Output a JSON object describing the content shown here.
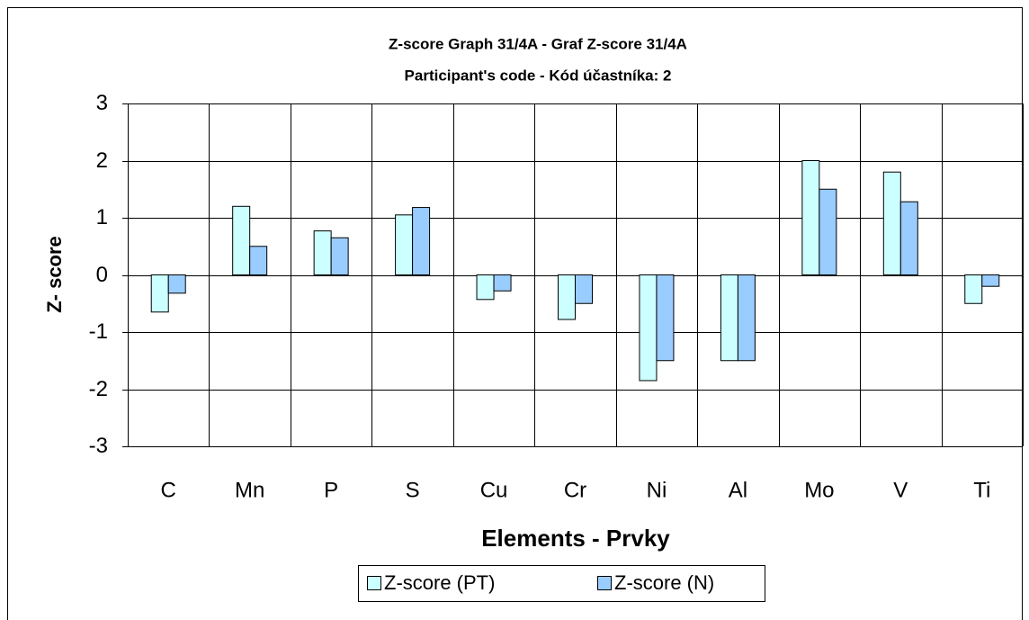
{
  "chart_data": {
    "type": "bar",
    "title": "Z-score Graph 31/4A - Graf Z-score 31/4A",
    "subtitle": "Participant's code - Kód účastníka:  2",
    "x_label": "Elements - Prvky",
    "y_label": "Z- score",
    "categories": [
      "C",
      "Mn",
      "P",
      "S",
      "Cu",
      "Cr",
      "Ni",
      "Al",
      "Mo",
      "V",
      "Ti"
    ],
    "series": [
      {
        "name": "Z-score (PT)",
        "color": "#ccffff",
        "values": [
          -0.65,
          1.2,
          0.77,
          1.05,
          -0.43,
          -0.78,
          -1.85,
          -1.5,
          2.0,
          1.8,
          -0.5
        ]
      },
      {
        "name": "Z-score (N)",
        "color": "#99ccff",
        "values": [
          -0.32,
          0.5,
          0.65,
          1.18,
          -0.28,
          -0.5,
          -1.5,
          -1.5,
          1.5,
          1.28,
          -0.2
        ]
      }
    ],
    "ylim": [
      -3,
      3
    ],
    "yticks": [
      -3,
      -2,
      -1,
      0,
      1,
      2,
      3
    ],
    "grid": true,
    "legend": "bottom"
  }
}
